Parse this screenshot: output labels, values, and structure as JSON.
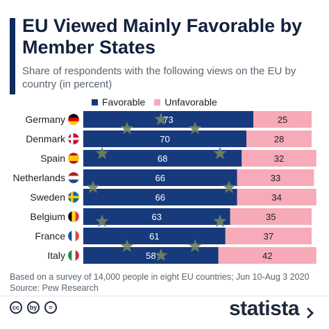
{
  "title": "EU Viewed Mainly Favorable by Member States",
  "subtitle": "Share of respondents with the following views on the EU by country (in percent)",
  "legend": {
    "favorable": "Favorable",
    "unfavorable": "Unfavorable"
  },
  "colors": {
    "favorable": "#173a7d",
    "unfavorable": "#f7aab7",
    "accent": "#0d2b5b",
    "stars": "#6f8460"
  },
  "chart_data": {
    "type": "bar",
    "orientation": "horizontal",
    "stacked": true,
    "categories": [
      "Germany",
      "Denmark",
      "Spain",
      "Netherlands",
      "Sweden",
      "Belgium",
      "France",
      "Italy"
    ],
    "series": [
      {
        "name": "Favorable",
        "values": [
          73,
          70,
          68,
          66,
          66,
          63,
          61,
          58
        ]
      },
      {
        "name": "Unfavorable",
        "values": [
          25,
          28,
          32,
          33,
          34,
          35,
          37,
          42
        ]
      }
    ],
    "xlim": [
      0,
      100
    ],
    "flag_icons": [
      "germany-flag-icon",
      "denmark-flag-icon",
      "spain-flag-icon",
      "netherlands-flag-icon",
      "sweden-flag-icon",
      "belgium-flag-icon",
      "france-flag-icon",
      "italy-flag-icon"
    ],
    "background_decoration": "eu-stars-circle-icon"
  },
  "footnote": {
    "line1": "Based on a survey of 14,000 people in eight EU countries; Jun 10-Aug 3 2020",
    "line2": "Source: Pew Research"
  },
  "footer": {
    "brand": "statista",
    "cc_icons": [
      "cc",
      "by",
      "="
    ]
  }
}
